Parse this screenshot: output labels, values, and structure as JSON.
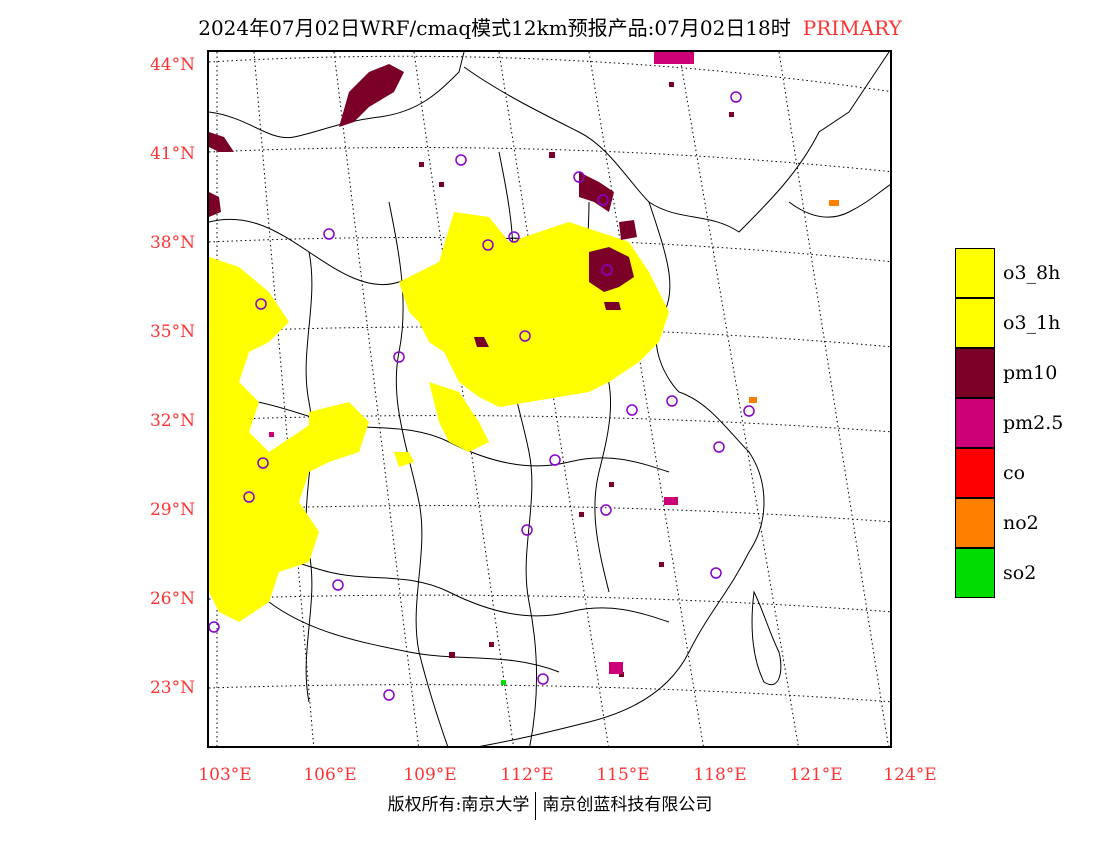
{
  "title": {
    "main": "2024年07月02日WRF/cmaq模式12km预报产品:07月02日18时",
    "tag": "PRIMARY"
  },
  "map": {
    "lat_labels": [
      "44°N",
      "41°N",
      "38°N",
      "35°N",
      "32°N",
      "29°N",
      "26°N",
      "23°N"
    ],
    "lon_labels": [
      "103°E",
      "106°E",
      "109°E",
      "112°E",
      "115°E",
      "118°E",
      "121°E",
      "124°E"
    ],
    "colors": {
      "o3": "#ffff00",
      "pm10": "#7a0028",
      "pm25": "#cc0077",
      "no2": "#ff7f00",
      "so2": "#00dd00",
      "station_marker": "#8800cc",
      "axis_label": "#ff3333"
    },
    "station_marker_icon": "circle-station-icon"
  },
  "legend": [
    {
      "label": "o3_8h",
      "color": "#ffff00"
    },
    {
      "label": "o3_1h",
      "color": "#ffff00"
    },
    {
      "label": "pm10",
      "color": "#7a0028"
    },
    {
      "label": "pm2.5",
      "color": "#cc0077"
    },
    {
      "label": "co",
      "color": "#ff0000"
    },
    {
      "label": "no2",
      "color": "#ff7f00"
    },
    {
      "label": "so2",
      "color": "#00dd00"
    }
  ],
  "footer": {
    "left": "版权所有:南京大学",
    "right": "南京创蓝科技有限公司"
  }
}
